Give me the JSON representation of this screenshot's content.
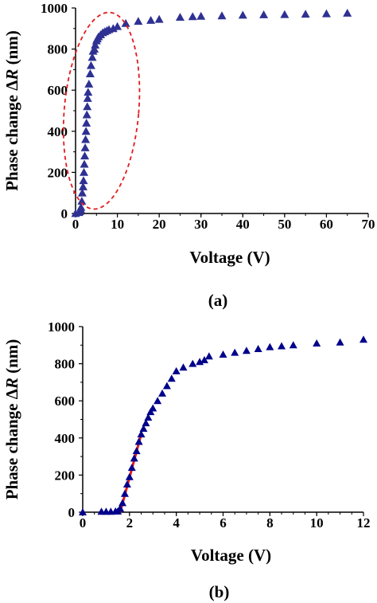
{
  "chart_data": [
    {
      "type": "scatter",
      "panel_label": "(a)",
      "xlabel": "Voltage (V)",
      "ylabel_prefix": "Phase change Δ",
      "ylabel_var": "R",
      "ylabel_suffix": " (nm)",
      "xlim": [
        0,
        70
      ],
      "ylim": [
        0,
        1000
      ],
      "xticks": [
        0,
        10,
        20,
        30,
        40,
        50,
        60,
        70
      ],
      "yticks": [
        0,
        200,
        400,
        600,
        800,
        1000
      ],
      "grid": false,
      "marker_color": "#2e3192",
      "annotation": {
        "type": "dashed-ellipse",
        "color": "#e41a1c",
        "center": [
          6.2,
          500
        ],
        "radius": [
          8.9,
          480
        ]
      },
      "series": [
        {
          "x": [
            0,
            0.8,
            1,
            1.2,
            1.3,
            1.5,
            1.6,
            1.8,
            1.9,
            2,
            2.1,
            2.2,
            2.3,
            2.4,
            2.5,
            2.6,
            2.7,
            2.8,
            2.9,
            3,
            3.2,
            3.5,
            3.7,
            4,
            4.2,
            4.5,
            4.7,
            5,
            5.2,
            5.5,
            6,
            6.5,
            7,
            7.5,
            8,
            9,
            10,
            12,
            15,
            18,
            20,
            25,
            28,
            30,
            35,
            40,
            45,
            50,
            55,
            60,
            65
          ],
          "y": [
            0,
            5,
            10,
            20,
            30,
            60,
            100,
            130,
            160,
            200,
            240,
            280,
            320,
            360,
            400,
            440,
            480,
            520,
            560,
            590,
            630,
            680,
            720,
            760,
            790,
            800,
            820,
            840,
            850,
            860,
            870,
            880,
            885,
            890,
            895,
            900,
            910,
            925,
            935,
            940,
            945,
            955,
            958,
            960,
            962,
            965,
            967,
            968,
            970,
            972,
            975
          ]
        }
      ]
    },
    {
      "type": "scatter",
      "panel_label": "(b)",
      "xlabel": "Voltage (V)",
      "ylabel_prefix": "Phase change Δ",
      "ylabel_var": "R",
      "ylabel_suffix": " (nm)",
      "xlim": [
        0,
        12
      ],
      "ylim": [
        0,
        1000
      ],
      "xticks": [
        0,
        2,
        4,
        6,
        8,
        10,
        12
      ],
      "yticks": [
        0,
        200,
        400,
        600,
        800,
        1000
      ],
      "grid": false,
      "marker_color": "#00008b",
      "fit_line": {
        "color": "#e41a1c",
        "x": [
          1.6,
          2.5
        ],
        "y": [
          0,
          420
        ]
      },
      "series": [
        {
          "x": [
            0,
            0.8,
            1,
            1.2,
            1.4,
            1.5,
            1.6,
            1.7,
            1.8,
            1.9,
            2,
            2.1,
            2.2,
            2.3,
            2.4,
            2.5,
            2.6,
            2.7,
            2.8,
            2.9,
            3,
            3.2,
            3.4,
            3.6,
            3.8,
            4,
            4.3,
            4.7,
            5,
            5.2,
            5.4,
            6,
            6.5,
            7,
            7.5,
            8,
            8.5,
            9,
            10,
            11,
            12
          ],
          "y": [
            0,
            3,
            3,
            3,
            5,
            5,
            20,
            50,
            100,
            150,
            190,
            240,
            290,
            330,
            380,
            420,
            450,
            480,
            510,
            540,
            560,
            600,
            640,
            680,
            720,
            760,
            780,
            800,
            810,
            820,
            840,
            850,
            860,
            870,
            880,
            890,
            895,
            900,
            910,
            915,
            930
          ]
        }
      ]
    }
  ]
}
